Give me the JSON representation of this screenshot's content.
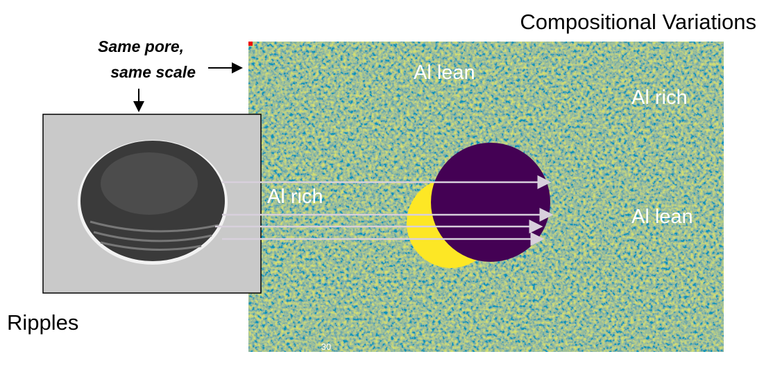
{
  "header": {
    "title": "Compositional Variations"
  },
  "note": {
    "lines": [
      "Same pore,",
      "same scale"
    ]
  },
  "left_image": {
    "label": "Ripples"
  },
  "map": {
    "labels": [
      "Al lean",
      "Al rich",
      "Al rich",
      "Al lean"
    ],
    "scale_bar": "30"
  }
}
